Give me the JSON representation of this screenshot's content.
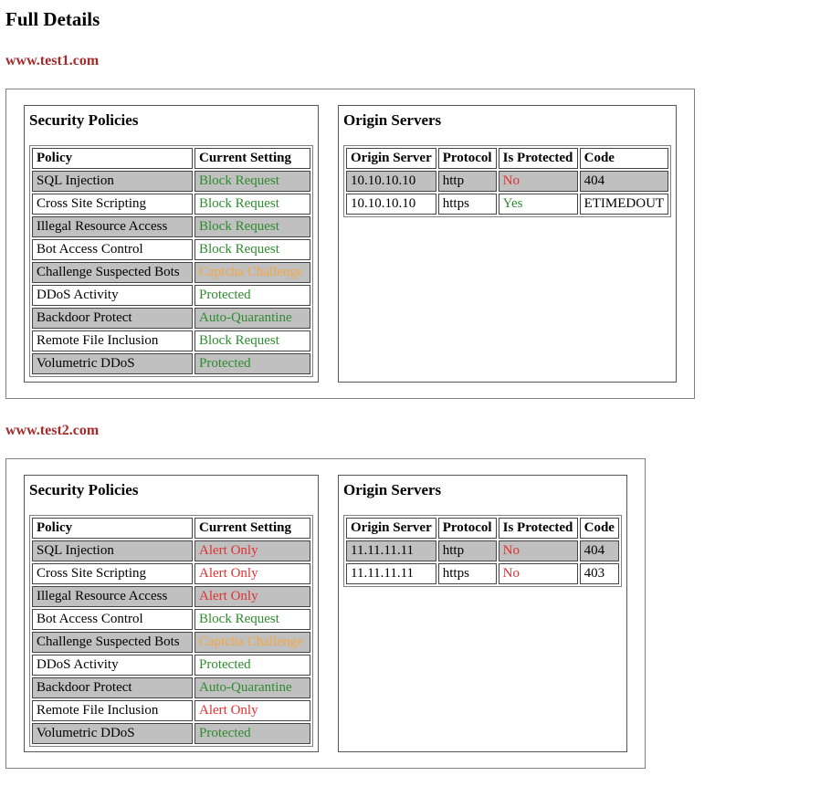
{
  "page": {
    "title": "Full Details"
  },
  "labels": {
    "security_title": "Security Policies",
    "origin_title": "Origin Servers",
    "policy_headers": [
      "Policy",
      "Current Setting"
    ],
    "origin_headers": [
      "Origin Server",
      "Protocol",
      "Is Protected",
      "Code"
    ]
  },
  "colors": {
    "green": "#2e8b2e",
    "red": "#e03131",
    "orange": "#f5a742",
    "site_heading": "#a52a2a",
    "row_shade": "#c0c0c0"
  },
  "sites": [
    {
      "domain": "www.test1.com",
      "policies": [
        {
          "policy": "SQL Injection",
          "setting": "Block Request",
          "color": "green"
        },
        {
          "policy": "Cross Site Scripting",
          "setting": "Block Request",
          "color": "green"
        },
        {
          "policy": "Illegal Resource Access",
          "setting": "Block Request",
          "color": "green"
        },
        {
          "policy": "Bot Access Control",
          "setting": "Block Request",
          "color": "green"
        },
        {
          "policy": "Challenge Suspected Bots",
          "setting": "Captcha Challenge",
          "color": "orange"
        },
        {
          "policy": "DDoS Activity",
          "setting": "Protected",
          "color": "green"
        },
        {
          "policy": "Backdoor Protect",
          "setting": "Auto-Quarantine",
          "color": "green"
        },
        {
          "policy": "Remote File Inclusion",
          "setting": "Block Request",
          "color": "green"
        },
        {
          "policy": "Volumetric DDoS",
          "setting": "Protected",
          "color": "green"
        }
      ],
      "origins": [
        {
          "server": "10.10.10.10",
          "protocol": "http",
          "is_protected": "No",
          "protected_color": "red",
          "code": "404"
        },
        {
          "server": "10.10.10.10",
          "protocol": "https",
          "is_protected": "Yes",
          "protected_color": "green",
          "code": "ETIMEDOUT"
        }
      ]
    },
    {
      "domain": "www.test2.com",
      "policies": [
        {
          "policy": "SQL Injection",
          "setting": "Alert Only",
          "color": "red"
        },
        {
          "policy": "Cross Site Scripting",
          "setting": "Alert Only",
          "color": "red"
        },
        {
          "policy": "Illegal Resource Access",
          "setting": "Alert Only",
          "color": "red"
        },
        {
          "policy": "Bot Access Control",
          "setting": "Block Request",
          "color": "green"
        },
        {
          "policy": "Challenge Suspected Bots",
          "setting": "Captcha Challenge",
          "color": "orange"
        },
        {
          "policy": "DDoS Activity",
          "setting": "Protected",
          "color": "green"
        },
        {
          "policy": "Backdoor Protect",
          "setting": "Auto-Quarantine",
          "color": "green"
        },
        {
          "policy": "Remote File Inclusion",
          "setting": "Alert Only",
          "color": "red"
        },
        {
          "policy": "Volumetric DDoS",
          "setting": "Protected",
          "color": "green"
        }
      ],
      "origins": [
        {
          "server": "11.11.11.11",
          "protocol": "http",
          "is_protected": "No",
          "protected_color": "red",
          "code": "404"
        },
        {
          "server": "11.11.11.11",
          "protocol": "https",
          "is_protected": "No",
          "protected_color": "red",
          "code": "403"
        }
      ]
    }
  ]
}
